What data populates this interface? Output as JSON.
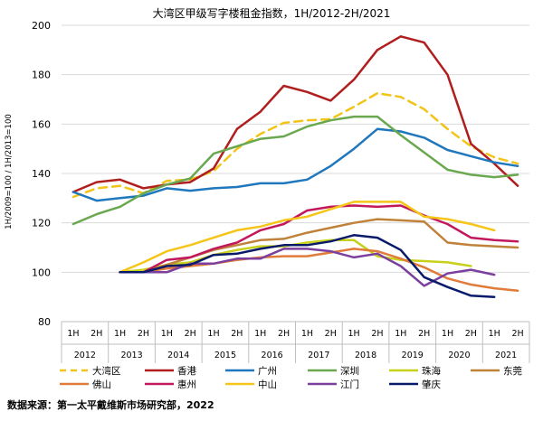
{
  "chart_data": {
    "type": "line",
    "title": "大湾区甲级写字楼租金指数，1H/2012-2H/2021",
    "ylabel": "1H/2009=100 / 1H/2013=100",
    "xlabel": "",
    "ylim": [
      80,
      200
    ],
    "yticks": [
      "80",
      "100",
      "120",
      "140",
      "160",
      "180",
      "200"
    ],
    "grid": true,
    "legend_position": "bottom",
    "halves": [
      "1H",
      "2H"
    ],
    "years": [
      "2012",
      "2013",
      "2014",
      "2015",
      "2016",
      "2017",
      "2018",
      "2019",
      "2020",
      "2021"
    ],
    "series": [
      {
        "name": "大湾区",
        "color": "#F2C318",
        "dashed": true,
        "start": 0,
        "values": [
          130.5,
          134,
          135,
          132,
          137,
          137.5,
          141,
          150,
          156,
          160.5,
          161.5,
          162,
          167,
          172.5,
          171,
          166,
          158,
          151,
          146.5,
          144
        ]
      },
      {
        "name": "香港",
        "color": "#B01E1E",
        "dashed": false,
        "start": 0,
        "values": [
          132.5,
          136.5,
          137.5,
          134,
          135.5,
          136.5,
          142,
          158,
          165,
          175.5,
          173,
          169.5,
          178,
          190,
          195.5,
          193,
          180,
          152,
          144,
          135
        ]
      },
      {
        "name": "广州",
        "color": "#1F77BE",
        "dashed": false,
        "start": 0,
        "values": [
          132.5,
          129,
          130,
          131,
          134,
          133,
          134,
          134.5,
          136,
          136,
          137.5,
          143,
          150,
          158,
          157,
          154.5,
          149.5,
          147,
          144.5,
          143
        ]
      },
      {
        "name": "深圳",
        "color": "#6AA84F",
        "dashed": false,
        "start": 0,
        "values": [
          119.5,
          123.5,
          126.5,
          132,
          135.5,
          138,
          148,
          151,
          154,
          155,
          159,
          161.5,
          163,
          163,
          155.5,
          148.5,
          141.5,
          139.5,
          138.5,
          139.5
        ]
      },
      {
        "name": "珠海",
        "color": "#C8D11A",
        "dashed": false,
        "start": 2,
        "values": [
          100,
          101,
          103,
          104,
          107,
          109,
          110.5,
          110.5,
          112,
          113,
          113,
          106.5,
          105,
          104.5,
          104,
          102.5
        ]
      },
      {
        "name": "东莞",
        "color": "#C0823A",
        "dashed": false,
        "start": 2,
        "values": [
          100,
          100,
          103,
          106,
          109,
          111,
          113,
          113.5,
          116,
          118,
          120,
          121.5,
          121,
          120.5,
          112,
          111,
          110.5,
          110
        ]
      },
      {
        "name": "佛山",
        "color": "#E07B39",
        "dashed": false,
        "start": 2,
        "values": [
          100,
          100,
          101.5,
          102.5,
          103.5,
          105,
          106,
          106.5,
          106.5,
          108,
          109.5,
          108.5,
          105.5,
          102,
          97.5,
          95,
          93.5,
          92.5
        ]
      },
      {
        "name": "惠州",
        "color": "#C2185B",
        "dashed": false,
        "start": 2,
        "values": [
          100,
          100,
          105,
          106,
          109.5,
          112,
          117,
          119.5,
          125,
          126.5,
          127,
          126.5,
          127,
          123,
          119.5,
          114,
          113,
          112.5
        ]
      },
      {
        "name": "中山",
        "color": "#F5C518",
        "dashed": false,
        "start": 2,
        "values": [
          100,
          104,
          108.5,
          111,
          114,
          117,
          118.5,
          121,
          122.5,
          125.5,
          128.5,
          128.5,
          128.5,
          122.5,
          121.5,
          119.5,
          117
        ]
      },
      {
        "name": "江门",
        "color": "#7B3F9E",
        "dashed": false,
        "start": 2,
        "values": [
          100,
          100,
          100,
          103.5,
          103.5,
          105.5,
          105.5,
          109.5,
          109.5,
          108.5,
          106,
          107.5,
          102.5,
          94.5,
          99.5,
          101,
          99
        ]
      },
      {
        "name": "肇庆",
        "color": "#0A1A6B",
        "dashed": false,
        "start": 2,
        "values": [
          100,
          100,
          102.5,
          103,
          107,
          107.5,
          109.5,
          111,
          111,
          112.5,
          115,
          114,
          109,
          98,
          94,
          90.5,
          90
        ]
      }
    ]
  },
  "source_text": "数据来源：第一太平戴维斯市场研究部，2022"
}
